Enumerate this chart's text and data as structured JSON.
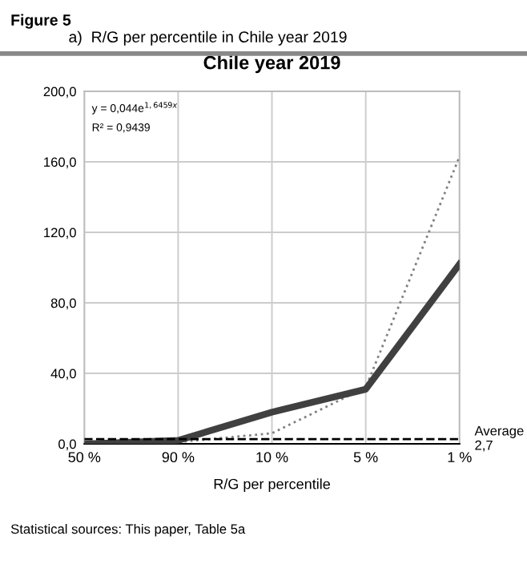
{
  "chart_data": {
    "type": "line",
    "title": "Chile year 2019",
    "subtitle": "a)  R/G per percentile in Chile year 2019",
    "xlabel": "R/G per percentile",
    "categories": [
      "50 %",
      "90 %",
      "10 %",
      "5 %",
      "1 %"
    ],
    "series": [
      {
        "color": "#404040",
        "values": [
          0,
          2,
          18,
          31,
          102
        ],
        "line_style": "solid"
      },
      {
        "color": "#808080",
        "values": [
          0,
          1,
          6,
          32,
          163
        ],
        "line_style": "dotted"
      }
    ],
    "ylim": [
      0,
      200
    ],
    "yticks": [
      {
        "value": 0,
        "label": "0,0"
      },
      {
        "value": 40,
        "label": "40,0"
      },
      {
        "value": 80,
        "label": "80,0"
      },
      {
        "value": 120,
        "label": "120,0"
      },
      {
        "value": 160,
        "label": "160,0"
      },
      {
        "value": 200,
        "label": "200,0"
      }
    ],
    "ref_lines": [
      {
        "axis": "y",
        "value": 2.7,
        "label": "Average\n2,7",
        "color": "#000000",
        "line_style": "dashed"
      }
    ],
    "annotations": [
      "Figure 5",
      "y = 0,044e$^{1,6459x}$",
      "R² = 0,9439",
      "Statistical sources: This paper, Table 5a"
    ],
    "grid": true,
    "legend": false,
    "marker": "none"
  }
}
